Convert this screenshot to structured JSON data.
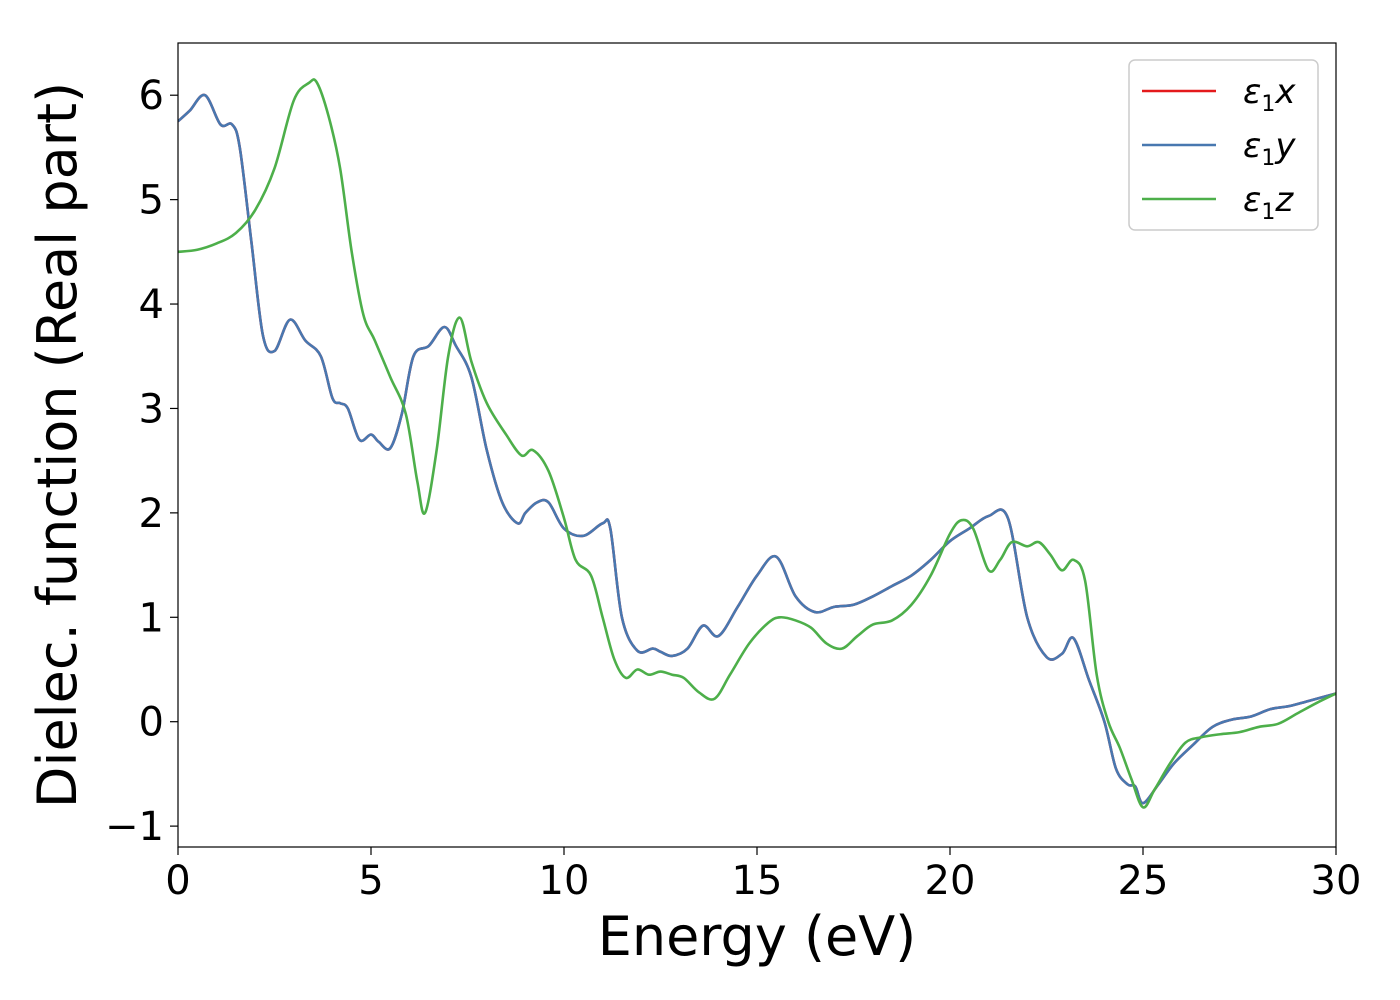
{
  "chart_data": {
    "type": "line",
    "xlabel": "Energy (eV)",
    "ylabel": "Dielec. function (Real part)",
    "xlim": [
      0,
      30
    ],
    "ylim": [
      -1.2,
      6.5
    ],
    "xticks": [
      0,
      5,
      10,
      15,
      20,
      25,
      30
    ],
    "yticks": [
      -1,
      0,
      1,
      2,
      3,
      4,
      5,
      6
    ],
    "xtick_labels": [
      "0",
      "5",
      "10",
      "15",
      "20",
      "25",
      "30"
    ],
    "ytick_labels": [
      "−1",
      "0",
      "1",
      "2",
      "3",
      "4",
      "5",
      "6"
    ],
    "grid": false,
    "legend_position": "top-right",
    "series": [
      {
        "name": "x",
        "label_main": "ε",
        "label_sub": "1",
        "label_tail": "x",
        "color": "#e41a1c",
        "x": [
          0,
          0.3,
          0.7,
          1.1,
          1.4,
          1.6,
          1.9,
          2.2,
          2.5,
          2.9,
          3.3,
          3.7,
          4.0,
          4.2,
          4.4,
          4.7,
          5.0,
          5.2,
          5.5,
          5.8,
          6.1,
          6.5,
          6.9,
          7.2,
          7.6,
          8.0,
          8.4,
          8.8,
          9.0,
          9.3,
          9.6,
          10.0,
          10.5,
          11.0,
          11.2,
          11.5,
          11.9,
          12.3,
          12.5,
          12.8,
          13.2,
          13.6,
          14.0,
          14.5,
          15.0,
          15.5,
          16.0,
          16.5,
          17.0,
          17.5,
          18.0,
          18.5,
          19.0,
          19.5,
          20.0,
          20.5,
          21.0,
          21.5,
          22.0,
          22.5,
          22.9,
          23.2,
          23.6,
          24.0,
          24.3,
          24.6,
          24.8,
          25.0,
          25.4,
          25.8,
          26.3,
          26.8,
          27.3,
          27.8,
          28.3,
          28.8,
          29.3,
          30.0
        ],
        "y": [
          5.75,
          5.85,
          6.0,
          5.72,
          5.72,
          5.5,
          4.6,
          3.7,
          3.55,
          3.85,
          3.65,
          3.5,
          3.1,
          3.05,
          3.0,
          2.7,
          2.75,
          2.68,
          2.62,
          2.95,
          3.5,
          3.6,
          3.78,
          3.6,
          3.3,
          2.6,
          2.1,
          1.9,
          2.0,
          2.1,
          2.1,
          1.85,
          1.78,
          1.9,
          1.85,
          1.0,
          0.68,
          0.7,
          0.67,
          0.63,
          0.7,
          0.92,
          0.82,
          1.1,
          1.4,
          1.58,
          1.2,
          1.05,
          1.1,
          1.12,
          1.2,
          1.3,
          1.4,
          1.55,
          1.73,
          1.85,
          1.97,
          1.95,
          1.0,
          0.62,
          0.65,
          0.8,
          0.4,
          0.0,
          -0.45,
          -0.6,
          -0.62,
          -0.78,
          -0.6,
          -0.4,
          -0.22,
          -0.05,
          0.02,
          0.05,
          0.12,
          0.15,
          0.2,
          0.27
        ]
      },
      {
        "name": "y",
        "label_main": "ε",
        "label_sub": "1",
        "label_tail": "y",
        "color": "#4878b0",
        "x": [
          0,
          0.3,
          0.7,
          1.1,
          1.4,
          1.6,
          1.9,
          2.2,
          2.5,
          2.9,
          3.3,
          3.7,
          4.0,
          4.2,
          4.4,
          4.7,
          5.0,
          5.2,
          5.5,
          5.8,
          6.1,
          6.5,
          6.9,
          7.2,
          7.6,
          8.0,
          8.4,
          8.8,
          9.0,
          9.3,
          9.6,
          10.0,
          10.5,
          11.0,
          11.2,
          11.5,
          11.9,
          12.3,
          12.5,
          12.8,
          13.2,
          13.6,
          14.0,
          14.5,
          15.0,
          15.5,
          16.0,
          16.5,
          17.0,
          17.5,
          18.0,
          18.5,
          19.0,
          19.5,
          20.0,
          20.5,
          21.0,
          21.5,
          22.0,
          22.5,
          22.9,
          23.2,
          23.6,
          24.0,
          24.3,
          24.6,
          24.8,
          25.0,
          25.4,
          25.8,
          26.3,
          26.8,
          27.3,
          27.8,
          28.3,
          28.8,
          29.3,
          30.0
        ],
        "y": [
          5.75,
          5.85,
          6.0,
          5.72,
          5.72,
          5.5,
          4.6,
          3.7,
          3.55,
          3.85,
          3.65,
          3.5,
          3.1,
          3.05,
          3.0,
          2.7,
          2.75,
          2.68,
          2.62,
          2.95,
          3.5,
          3.6,
          3.78,
          3.6,
          3.3,
          2.6,
          2.1,
          1.9,
          2.0,
          2.1,
          2.1,
          1.85,
          1.78,
          1.9,
          1.85,
          1.0,
          0.68,
          0.7,
          0.67,
          0.63,
          0.7,
          0.92,
          0.82,
          1.1,
          1.4,
          1.58,
          1.2,
          1.05,
          1.1,
          1.12,
          1.2,
          1.3,
          1.4,
          1.55,
          1.73,
          1.85,
          1.97,
          1.95,
          1.0,
          0.62,
          0.65,
          0.8,
          0.4,
          0.0,
          -0.45,
          -0.6,
          -0.62,
          -0.78,
          -0.6,
          -0.4,
          -0.22,
          -0.05,
          0.02,
          0.05,
          0.12,
          0.15,
          0.2,
          0.27
        ]
      },
      {
        "name": "z",
        "label_main": "ε",
        "label_sub": "1",
        "label_tail": "z",
        "color": "#4daf4a",
        "x": [
          0,
          0.5,
          1.0,
          1.5,
          2.0,
          2.5,
          3.0,
          3.4,
          3.6,
          3.9,
          4.2,
          4.5,
          4.8,
          5.1,
          5.5,
          5.9,
          6.2,
          6.4,
          6.7,
          7.0,
          7.3,
          7.6,
          8.0,
          8.5,
          8.9,
          9.2,
          9.6,
          10.0,
          10.3,
          10.7,
          11.0,
          11.3,
          11.6,
          11.9,
          12.2,
          12.5,
          12.8,
          13.1,
          13.5,
          13.9,
          14.3,
          14.8,
          15.3,
          15.6,
          16.0,
          16.4,
          16.8,
          17.2,
          17.6,
          18.0,
          18.5,
          19.0,
          19.5,
          20.0,
          20.3,
          20.6,
          21.0,
          21.3,
          21.6,
          22.0,
          22.3,
          22.6,
          22.9,
          23.2,
          23.5,
          23.8,
          24.1,
          24.4,
          24.7,
          25.0,
          25.3,
          25.7,
          26.1,
          26.5,
          27.0,
          27.5,
          28.0,
          28.5,
          29.0,
          29.5,
          30.0
        ],
        "y": [
          4.5,
          4.52,
          4.58,
          4.68,
          4.9,
          5.3,
          5.95,
          6.12,
          6.12,
          5.8,
          5.3,
          4.5,
          3.9,
          3.65,
          3.3,
          2.95,
          2.3,
          2.0,
          2.6,
          3.5,
          3.87,
          3.45,
          3.05,
          2.75,
          2.55,
          2.6,
          2.4,
          1.95,
          1.55,
          1.4,
          1.0,
          0.6,
          0.42,
          0.5,
          0.45,
          0.48,
          0.45,
          0.42,
          0.28,
          0.22,
          0.45,
          0.75,
          0.95,
          1.0,
          0.97,
          0.9,
          0.75,
          0.7,
          0.82,
          0.93,
          0.97,
          1.12,
          1.4,
          1.8,
          1.93,
          1.85,
          1.45,
          1.55,
          1.72,
          1.68,
          1.72,
          1.6,
          1.45,
          1.55,
          1.35,
          0.45,
          0.0,
          -0.25,
          -0.55,
          -0.82,
          -0.65,
          -0.4,
          -0.2,
          -0.15,
          -0.12,
          -0.1,
          -0.05,
          -0.02,
          0.08,
          0.18,
          0.27
        ]
      }
    ]
  }
}
